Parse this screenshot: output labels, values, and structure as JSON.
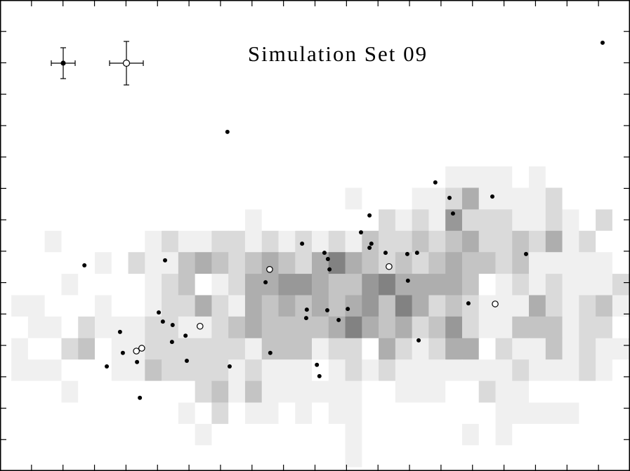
{
  "chart_data": {
    "type": "heatmap-scatter",
    "title": "Simulation Set 09",
    "xlim": [
      0,
      20
    ],
    "ylim": [
      0,
      15
    ],
    "xticks": [
      1,
      2,
      3,
      4,
      5,
      6,
      7,
      8,
      9,
      10,
      11,
      12,
      13,
      14,
      15,
      16,
      17,
      18,
      19
    ],
    "yticks": [
      1,
      2,
      3,
      4,
      5,
      6,
      7,
      8,
      9,
      10,
      11,
      12,
      13,
      14
    ],
    "heatmap": {
      "xbins": [
        0.36,
        0.89,
        1.42,
        1.95,
        2.48,
        3.01,
        3.54,
        4.07,
        4.6,
        5.13,
        5.66,
        6.19,
        6.72,
        7.25,
        7.78,
        8.31,
        8.84,
        9.37,
        9.9,
        10.43,
        10.96,
        11.49,
        12.02,
        12.55,
        13.08,
        13.61,
        14.14,
        14.67,
        15.2,
        15.73,
        16.26,
        16.79,
        17.32,
        17.85,
        18.38,
        18.91,
        19.44,
        19.97
      ],
      "ybins": [
        9.7,
        9.02,
        8.33,
        7.65,
        6.97,
        6.28,
        5.6,
        4.92,
        4.23,
        3.55,
        2.87,
        2.18,
        1.5,
        0.82,
        0.13
      ],
      "values": [
        [
          0,
          0,
          0,
          0,
          0,
          0,
          0,
          0,
          0,
          0,
          0,
          0,
          0,
          0,
          0,
          0,
          0,
          0,
          0,
          0,
          0,
          0,
          0,
          0,
          0,
          0,
          1,
          1,
          1,
          1,
          0,
          1,
          0,
          0,
          0,
          0,
          0
        ],
        [
          0,
          0,
          0,
          0,
          0,
          0,
          0,
          0,
          0,
          0,
          0,
          0,
          0,
          0,
          0,
          0,
          0,
          0,
          0,
          0,
          1,
          0,
          0,
          0,
          1,
          1,
          2,
          4,
          1,
          1,
          1,
          1,
          2,
          0,
          0,
          0,
          0
        ],
        [
          0,
          0,
          0,
          0,
          0,
          0,
          0,
          0,
          0,
          0,
          0,
          0,
          0,
          0,
          1,
          0,
          0,
          0,
          0,
          0,
          0,
          0,
          2,
          1,
          2,
          1,
          5,
          2,
          2,
          2,
          1,
          1,
          2,
          1,
          0,
          2,
          0
        ],
        [
          0,
          0,
          1,
          0,
          0,
          0,
          0,
          0,
          1,
          2,
          1,
          1,
          2,
          2,
          1,
          2,
          1,
          2,
          1,
          2,
          1,
          3,
          2,
          2,
          3,
          2,
          3,
          4,
          2,
          2,
          3,
          2,
          4,
          1,
          2,
          0,
          0
        ],
        [
          0,
          0,
          0,
          0,
          0,
          1,
          0,
          2,
          1,
          1,
          3,
          4,
          3,
          2,
          3,
          4,
          3,
          2,
          4,
          6,
          4,
          3,
          2,
          3,
          2,
          3,
          4,
          3,
          3,
          2,
          3,
          1,
          1,
          1,
          1,
          1,
          0
        ],
        [
          0,
          0,
          0,
          1,
          0,
          0,
          0,
          0,
          1,
          2,
          3,
          0,
          1,
          2,
          4,
          4,
          5,
          5,
          4,
          3,
          3,
          5,
          6,
          4,
          4,
          4,
          4,
          3,
          0,
          1,
          2,
          1,
          2,
          1,
          1,
          1,
          2
        ],
        [
          1,
          1,
          0,
          0,
          0,
          1,
          0,
          0,
          1,
          2,
          2,
          4,
          2,
          1,
          4,
          3,
          4,
          3,
          4,
          3,
          4,
          5,
          3,
          6,
          4,
          2,
          3,
          2,
          1,
          1,
          1,
          4,
          2,
          1,
          2,
          3,
          1
        ],
        [
          0,
          1,
          1,
          0,
          2,
          1,
          1,
          1,
          2,
          2,
          1,
          1,
          2,
          3,
          4,
          3,
          3,
          3,
          3,
          4,
          6,
          4,
          3,
          4,
          2,
          3,
          5,
          2,
          1,
          1,
          3,
          3,
          3,
          1,
          2,
          2,
          0
        ],
        [
          1,
          0,
          0,
          2,
          3,
          0,
          1,
          1,
          2,
          2,
          2,
          2,
          2,
          2,
          1,
          3,
          3,
          3,
          1,
          2,
          2,
          0,
          4,
          2,
          1,
          2,
          4,
          4,
          0,
          2,
          1,
          1,
          3,
          1,
          2,
          1,
          1
        ],
        [
          1,
          1,
          1,
          0,
          0,
          0,
          1,
          1,
          3,
          2,
          2,
          2,
          2,
          1,
          2,
          1,
          1,
          1,
          0,
          1,
          2,
          1,
          2,
          1,
          1,
          1,
          1,
          1,
          1,
          1,
          2,
          1,
          1,
          1,
          2,
          1,
          0
        ],
        [
          0,
          0,
          0,
          1,
          0,
          0,
          0,
          0,
          0,
          0,
          0,
          2,
          3,
          1,
          3,
          1,
          1,
          1,
          1,
          1,
          1,
          0,
          0,
          1,
          1,
          1,
          0,
          0,
          2,
          1,
          1,
          0,
          0,
          0,
          0,
          0,
          0
        ],
        [
          0,
          0,
          0,
          0,
          0,
          0,
          0,
          0,
          0,
          0,
          1,
          0,
          2,
          0,
          1,
          1,
          0,
          1,
          0,
          1,
          1,
          0,
          0,
          0,
          0,
          0,
          0,
          0,
          0,
          1,
          1,
          1,
          1,
          1,
          0,
          0,
          0
        ],
        [
          0,
          0,
          0,
          0,
          0,
          0,
          0,
          0,
          0,
          0,
          0,
          1,
          0,
          0,
          0,
          0,
          0,
          0,
          0,
          0,
          1,
          0,
          0,
          0,
          0,
          0,
          0,
          1,
          0,
          1,
          0,
          0,
          0,
          0,
          0,
          0,
          0
        ],
        [
          0,
          0,
          0,
          0,
          0,
          0,
          0,
          0,
          0,
          0,
          0,
          0,
          0,
          0,
          0,
          0,
          0,
          0,
          0,
          0,
          1,
          0,
          0,
          0,
          0,
          0,
          0,
          0,
          0,
          0,
          0,
          0,
          0,
          0,
          0,
          0,
          0
        ]
      ]
    },
    "series": [
      {
        "marker": "filled",
        "color": "#000000",
        "x": [
          19.13,
          7.22,
          13.82,
          15.63,
          14.27,
          14.38,
          11.73,
          11.46,
          11.79,
          9.59,
          11.73,
          10.3,
          12.24,
          12.93,
          13.24,
          16.7,
          10.41,
          2.68,
          5.24,
          10.46,
          8.43,
          12.95,
          14.87,
          9.74,
          10.39,
          11.04,
          5.04,
          9.72,
          5.17,
          10.75,
          5.48,
          5.89,
          3.81,
          5.46,
          13.29,
          3.9,
          8.58,
          4.35,
          5.93,
          3.39,
          10.06,
          7.29,
          10.14,
          4.44
        ],
        "y": [
          13.64,
          10.8,
          9.19,
          8.74,
          8.7,
          8.2,
          8.14,
          7.6,
          7.24,
          7.24,
          7.11,
          6.95,
          6.95,
          6.91,
          6.95,
          6.91,
          6.75,
          6.55,
          6.71,
          6.42,
          6.01,
          6.06,
          5.34,
          5.14,
          5.12,
          5.16,
          5.05,
          4.87,
          4.76,
          4.81,
          4.65,
          4.31,
          4.43,
          4.11,
          4.16,
          3.76,
          3.76,
          3.47,
          3.51,
          3.33,
          3.38,
          3.33,
          3.02,
          2.33
        ]
      },
      {
        "marker": "open",
        "color": "#000000",
        "x": [
          8.56,
          12.35,
          6.35,
          15.72,
          4.5,
          4.33
        ],
        "y": [
          6.42,
          6.51,
          4.61,
          5.32,
          3.91,
          3.82
        ]
      }
    ]
  }
}
